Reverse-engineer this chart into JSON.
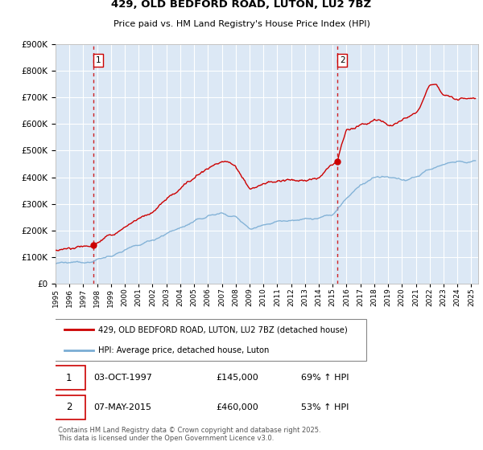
{
  "title1": "429, OLD BEDFORD ROAD, LUTON, LU2 7BZ",
  "title2": "Price paid vs. HM Land Registry's House Price Index (HPI)",
  "ylim": [
    0,
    900000
  ],
  "xlim_start": 1995.0,
  "xlim_end": 2025.5,
  "sale1_date": "03-OCT-1997",
  "sale1_price": 145000,
  "sale1_label": "69% ↑ HPI",
  "sale2_date": "07-MAY-2015",
  "sale2_price": 460000,
  "sale2_label": "53% ↑ HPI",
  "legend1": "429, OLD BEDFORD ROAD, LUTON, LU2 7BZ (detached house)",
  "legend2": "HPI: Average price, detached house, Luton",
  "footnote": "Contains HM Land Registry data © Crown copyright and database right 2025.\nThis data is licensed under the Open Government Licence v3.0.",
  "red_color": "#cc0000",
  "blue_color": "#7aadd4",
  "background_color": "#dce8f5",
  "grid_color": "#ffffff",
  "sale1_x": 1997.75,
  "sale2_x": 2015.35,
  "yticks": [
    0,
    100000,
    200000,
    300000,
    400000,
    500000,
    600000,
    700000,
    800000,
    900000
  ]
}
